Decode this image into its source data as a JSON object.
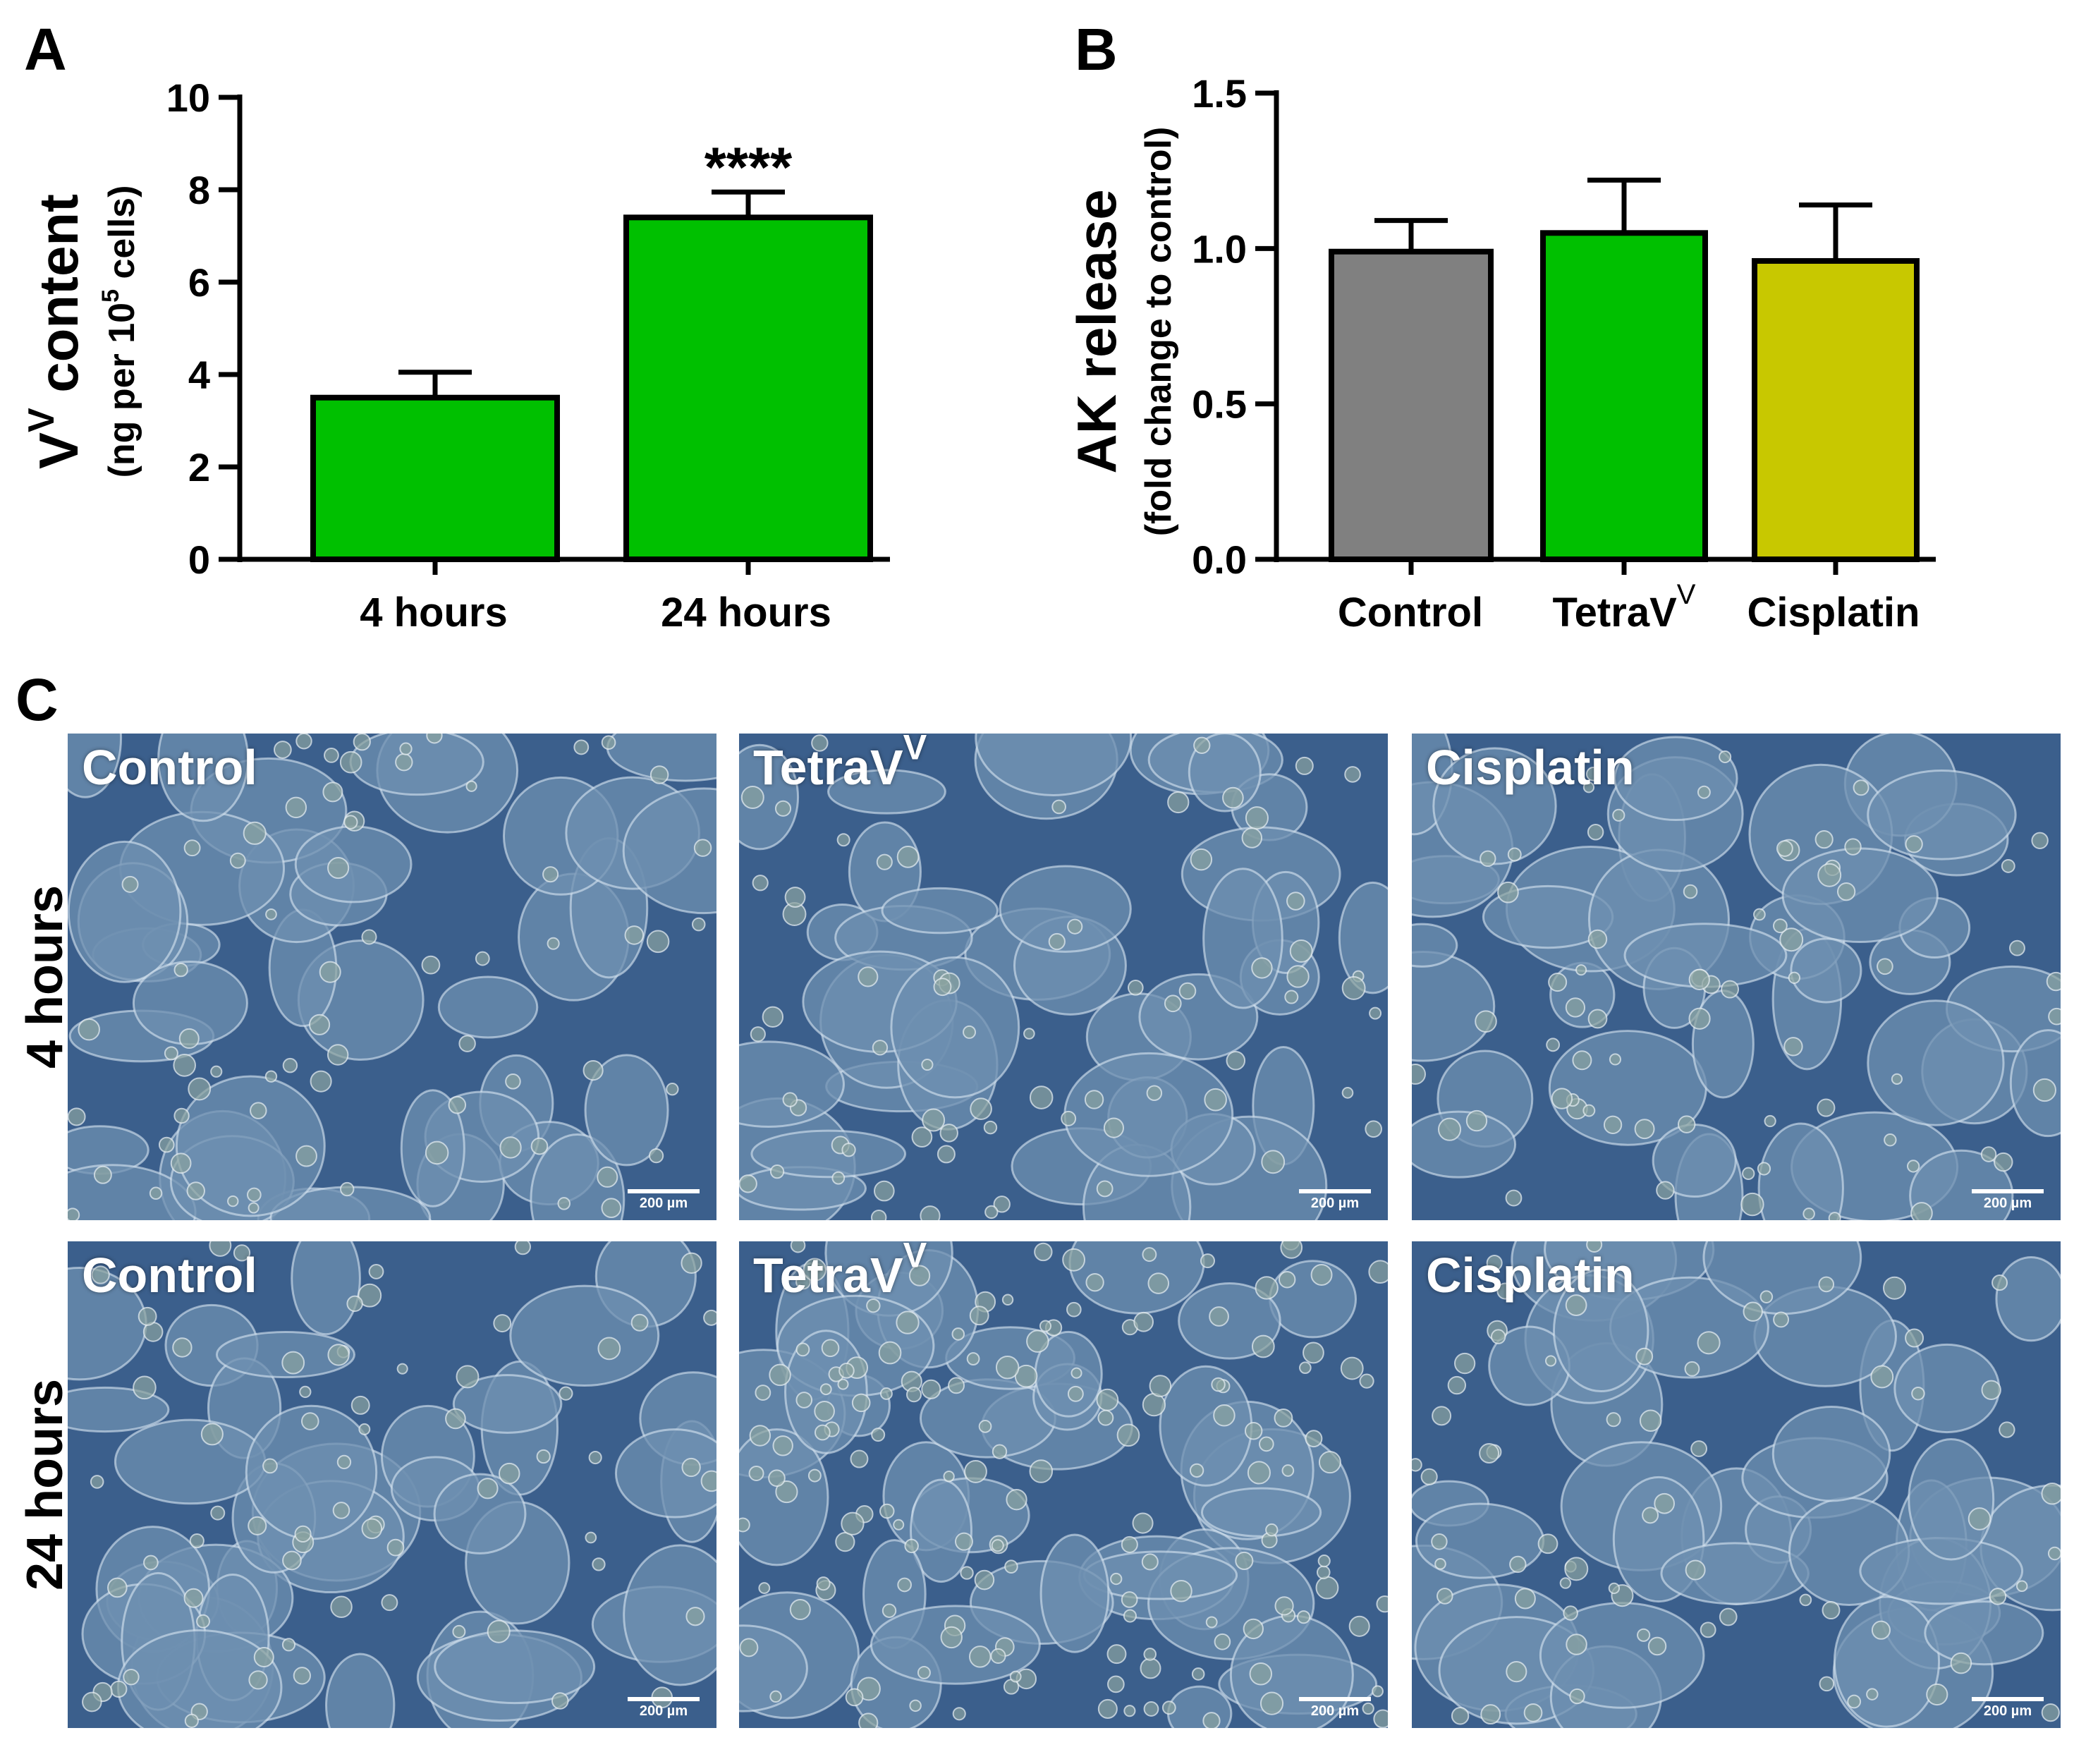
{
  "panel_labels": {
    "a": "A",
    "b": "B",
    "c": "C"
  },
  "colors": {
    "green": "#00c000",
    "gray": "#808080",
    "olive": "#c8c800",
    "axis": "#000000",
    "micrograph_bg": "#3b5f8c",
    "cell_fill": "#6d8fb0",
    "cell_edge": "#d9e6f2"
  },
  "chart_data": [
    {
      "type": "bar",
      "panel": "A",
      "categories": [
        "4 hours",
        "24 hours"
      ],
      "values": [
        3.5,
        7.4
      ],
      "errors": [
        0.55,
        0.55
      ],
      "bar_colors": [
        "#00c000",
        "#00c000"
      ],
      "annotations": [
        {
          "category": "24 hours",
          "text": "****"
        }
      ],
      "ylabel_main": "V",
      "ylabel_main_sup": "V",
      "ylabel_main_rest": " content",
      "ylabel_sub_start": "(ng per 10",
      "ylabel_sub_sup": "5",
      "ylabel_sub_end": " cells)",
      "ylim": [
        0,
        10
      ],
      "yticks": [
        "0",
        "2",
        "4",
        "6",
        "8",
        "10"
      ],
      "ytick_values": [
        0,
        2,
        4,
        6,
        8,
        10
      ]
    },
    {
      "type": "bar",
      "panel": "B",
      "categories": [
        "Control",
        "TetraV",
        "Cisplatin"
      ],
      "category_sup": [
        "",
        "V",
        ""
      ],
      "values": [
        0.99,
        1.05,
        0.96
      ],
      "errors": [
        0.1,
        0.17,
        0.18
      ],
      "bar_colors": [
        "#808080",
        "#00c000",
        "#c8c800"
      ],
      "ylabel_main": "AK release",
      "ylabel_sub": "(fold change to control)",
      "ylim": [
        0,
        1.5
      ],
      "yticks": [
        "0.0",
        "0.5",
        "1.0",
        "1.5"
      ],
      "ytick_values": [
        0,
        0.5,
        1.0,
        1.5
      ]
    }
  ],
  "micrographs": {
    "rows": [
      {
        "label": "4 hours",
        "cells": [
          {
            "label": "Control",
            "sup": "",
            "scale": "200 µm"
          },
          {
            "label": "TetraV",
            "sup": "V",
            "scale": "200 µm"
          },
          {
            "label": "Cisplatin",
            "sup": "",
            "scale": "200 µm"
          }
        ]
      },
      {
        "label": "24 hours",
        "cells": [
          {
            "label": "Control",
            "sup": "",
            "scale": "200 µm"
          },
          {
            "label": "TetraV",
            "sup": "V",
            "scale": "200 µm"
          },
          {
            "label": "Cisplatin",
            "sup": "",
            "scale": "200 µm"
          }
        ]
      }
    ]
  }
}
